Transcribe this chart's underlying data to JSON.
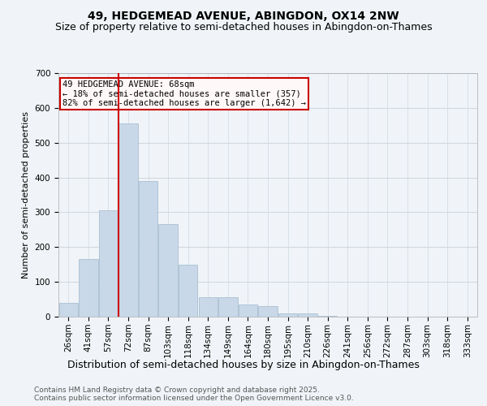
{
  "title": "49, HEDGEMEAD AVENUE, ABINGDON, OX14 2NW",
  "subtitle": "Size of property relative to semi-detached houses in Abingdon-on-Thames",
  "xlabel": "Distribution of semi-detached houses by size in Abingdon-on-Thames",
  "ylabel": "Number of semi-detached properties",
  "bins": [
    "26sqm",
    "41sqm",
    "57sqm",
    "72sqm",
    "87sqm",
    "103sqm",
    "118sqm",
    "134sqm",
    "149sqm",
    "164sqm",
    "180sqm",
    "195sqm",
    "210sqm",
    "226sqm",
    "241sqm",
    "256sqm",
    "272sqm",
    "287sqm",
    "303sqm",
    "318sqm",
    "333sqm"
  ],
  "values": [
    40,
    165,
    305,
    555,
    390,
    265,
    150,
    55,
    55,
    35,
    30,
    10,
    10,
    3,
    1,
    0,
    0,
    0,
    0,
    0,
    0
  ],
  "bar_color": "#c8d8e8",
  "bar_edge_color": "#a0b8cc",
  "grid_color": "#d0d8e0",
  "background_color": "#f0f4f8",
  "red_line_index": 3,
  "annotation_title": "49 HEDGEMEAD AVENUE: 68sqm",
  "annotation_line1": "← 18% of semi-detached houses are smaller (357)",
  "annotation_line2": "82% of semi-detached houses are larger (1,642) →",
  "annotation_box_color": "#fff8f8",
  "annotation_border_color": "#cc0000",
  "red_line_color": "#cc0000",
  "ylim": [
    0,
    700
  ],
  "yticks": [
    0,
    100,
    200,
    300,
    400,
    500,
    600,
    700
  ],
  "footer": "Contains HM Land Registry data © Crown copyright and database right 2025.\nContains public sector information licensed under the Open Government Licence v3.0.",
  "title_fontsize": 10,
  "subtitle_fontsize": 9,
  "xlabel_fontsize": 9,
  "ylabel_fontsize": 8,
  "tick_fontsize": 7.5,
  "footer_fontsize": 6.5,
  "ann_fontsize": 7.5
}
